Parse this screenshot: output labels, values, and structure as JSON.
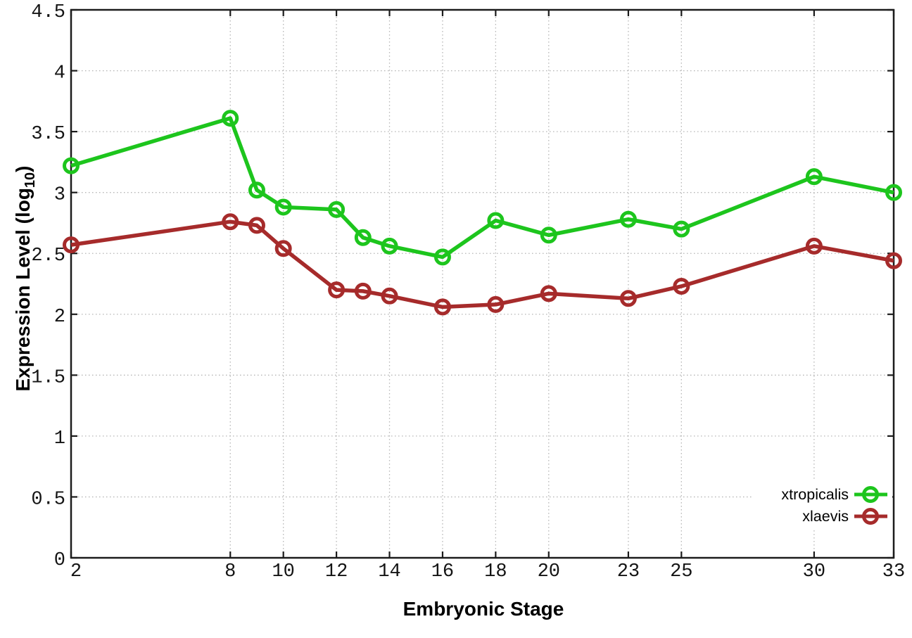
{
  "chart_data": {
    "type": "line",
    "title": "",
    "xlabel": "Embryonic Stage",
    "ylabel": "Expression Level (log10)",
    "ylabel_parts": {
      "base": "Expression Level (log",
      "sub": "10",
      "close": ")"
    },
    "x": [
      2,
      8,
      9,
      10,
      12,
      13,
      14,
      16,
      18,
      20,
      23,
      25,
      30,
      33
    ],
    "xlim": [
      2,
      33
    ],
    "ylim": [
      0,
      4.5
    ],
    "xticks": [
      2,
      8,
      10,
      12,
      14,
      16,
      18,
      20,
      23,
      25,
      30,
      33
    ],
    "yticks": [
      0,
      0.5,
      1,
      1.5,
      2,
      2.5,
      3,
      3.5,
      4,
      4.5
    ],
    "grid": true,
    "legend_position": "bottom-right",
    "series": [
      {
        "name": "xtropicalis",
        "color": "#1dc51d",
        "values": [
          3.22,
          3.61,
          3.02,
          2.88,
          2.86,
          2.63,
          2.56,
          2.47,
          2.77,
          2.65,
          2.78,
          2.7,
          3.13,
          3.0
        ]
      },
      {
        "name": "xlaevis",
        "color": "#a62b2b",
        "values": [
          2.57,
          2.76,
          2.73,
          2.54,
          2.2,
          2.19,
          2.15,
          2.06,
          2.08,
          2.17,
          2.13,
          2.23,
          2.56,
          2.44
        ]
      }
    ],
    "colors": {
      "grid": "#b5b5b5",
      "border": "#1c1c1c",
      "background": "#ffffff"
    }
  }
}
